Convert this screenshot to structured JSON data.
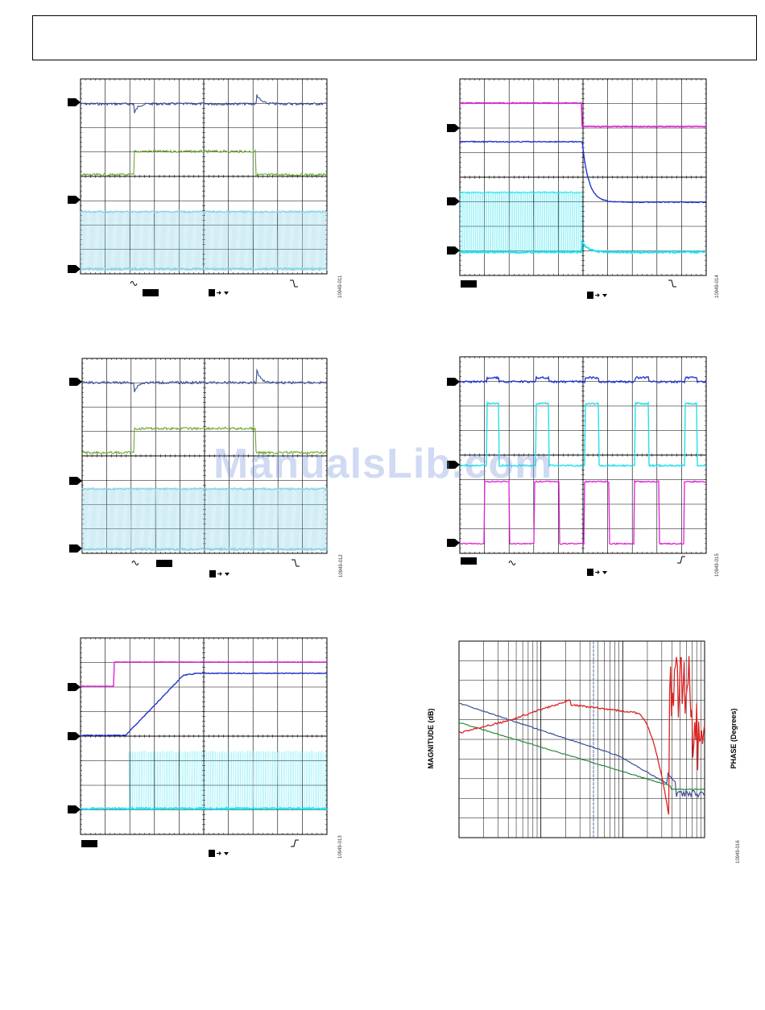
{
  "watermark": "ManualsLib.com",
  "figures": [
    {
      "id": "fig-11",
      "figure_number": "10949-011"
    },
    {
      "id": "fig-12",
      "figure_number": "10949-012"
    },
    {
      "id": "fig-13",
      "figure_number": "10949-013"
    },
    {
      "id": "fig-14",
      "figure_number": "10949-014"
    },
    {
      "id": "fig-15",
      "figure_number": "10949-015"
    },
    {
      "id": "fig-16",
      "figure_number": "10949-016"
    }
  ],
  "bode": {
    "left_axis_label": "MAGNITUDE (dB)",
    "right_axis_label": "PHASE (Degrees)"
  },
  "colors": {
    "navy": "#3d4f99",
    "green": "#6aa832",
    "cyan": "#8fd3e6",
    "magenta": "#e020d8",
    "blue": "#2233cc",
    "aqua": "#22e0ee",
    "red": "#dd2222",
    "dkgreen": "#2a8a3a"
  }
}
